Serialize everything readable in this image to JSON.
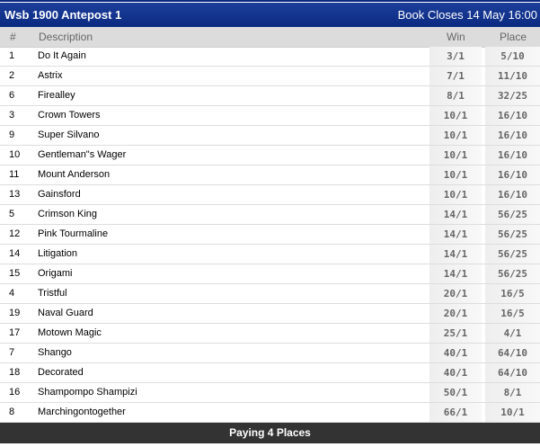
{
  "header": {
    "title": "Wsb 1900 Antepost 1",
    "closes": "Book Closes 14 May 16:00"
  },
  "columns": {
    "num": "#",
    "desc": "Description",
    "win": "Win",
    "place": "Place"
  },
  "rows": [
    {
      "num": "1",
      "name": "Do It Again",
      "win": "3/1",
      "place": "5/10"
    },
    {
      "num": "2",
      "name": "Astrix",
      "win": "7/1",
      "place": "11/10"
    },
    {
      "num": "6",
      "name": "Firealley",
      "win": "8/1",
      "place": "32/25"
    },
    {
      "num": "3",
      "name": "Crown Towers",
      "win": "10/1",
      "place": "16/10"
    },
    {
      "num": "9",
      "name": "Super Silvano",
      "win": "10/1",
      "place": "16/10"
    },
    {
      "num": "10",
      "name": "Gentleman\"s Wager",
      "win": "10/1",
      "place": "16/10"
    },
    {
      "num": "11",
      "name": "Mount Anderson",
      "win": "10/1",
      "place": "16/10"
    },
    {
      "num": "13",
      "name": "Gainsford",
      "win": "10/1",
      "place": "16/10"
    },
    {
      "num": "5",
      "name": "Crimson King",
      "win": "14/1",
      "place": "56/25"
    },
    {
      "num": "12",
      "name": "Pink Tourmaline",
      "win": "14/1",
      "place": "56/25"
    },
    {
      "num": "14",
      "name": "Litigation",
      "win": "14/1",
      "place": "56/25"
    },
    {
      "num": "15",
      "name": "Origami",
      "win": "14/1",
      "place": "56/25"
    },
    {
      "num": "4",
      "name": "Tristful",
      "win": "20/1",
      "place": "16/5"
    },
    {
      "num": "19",
      "name": "Naval Guard",
      "win": "20/1",
      "place": "16/5"
    },
    {
      "num": "17",
      "name": "Motown Magic",
      "win": "25/1",
      "place": "4/1"
    },
    {
      "num": "7",
      "name": "Shango",
      "win": "40/1",
      "place": "64/10"
    },
    {
      "num": "18",
      "name": "Decorated",
      "win": "40/1",
      "place": "64/10"
    },
    {
      "num": "16",
      "name": "Shampompo Shampizi",
      "win": "50/1",
      "place": "8/1"
    },
    {
      "num": "8",
      "name": "Marchingontogether",
      "win": "66/1",
      "place": "10/1"
    }
  ],
  "footer": "Paying 4 Places"
}
